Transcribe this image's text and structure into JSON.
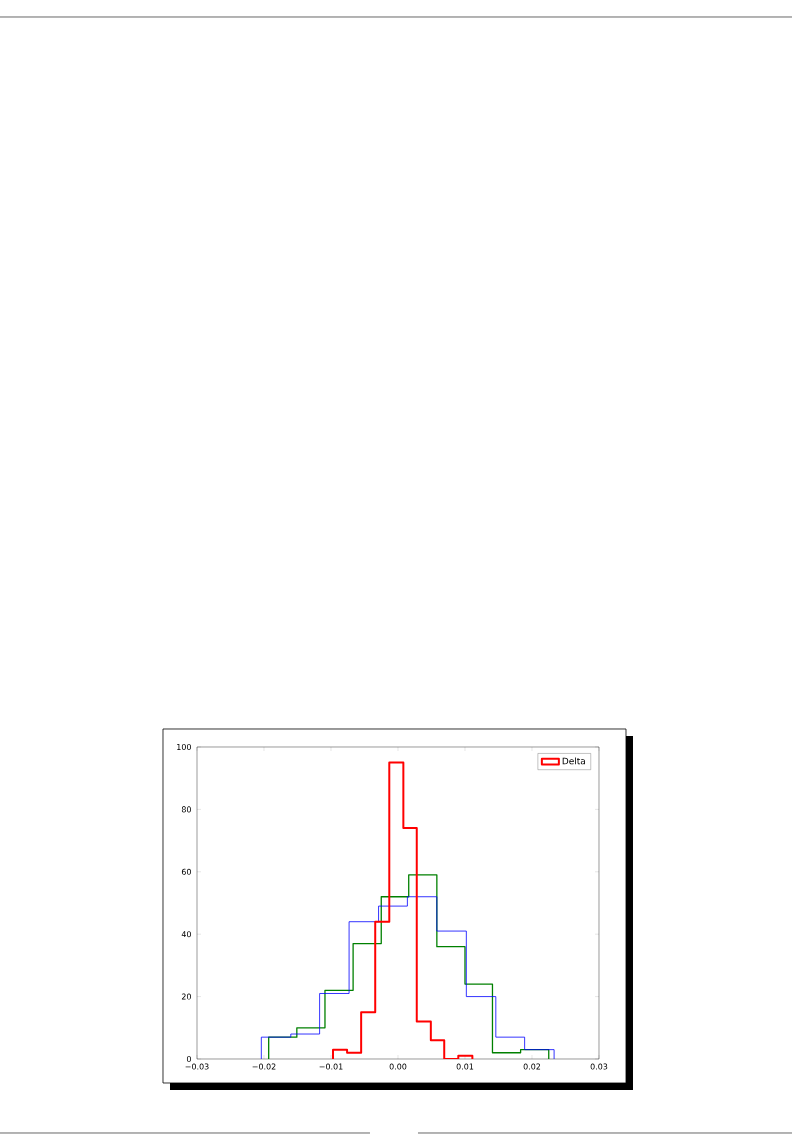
{
  "chart_data": {
    "type": "step",
    "legend": "top right",
    "grid": false,
    "xlim": [
      -0.03,
      0.03
    ],
    "ylim": [
      0,
      100
    ],
    "xticks": [
      {
        "value": -0.03,
        "label": "−0.03"
      },
      {
        "value": -0.02,
        "label": "−0.02"
      },
      {
        "value": -0.01,
        "label": "−0.01"
      },
      {
        "value": 0,
        "label": "0.00"
      },
      {
        "value": 0.01,
        "label": "0.01"
      },
      {
        "value": 0.02,
        "label": "0.02"
      },
      {
        "value": 0.03,
        "label": "0.03"
      }
    ],
    "yticks": [
      {
        "value": 0,
        "label": "0"
      },
      {
        "value": 20,
        "label": "20"
      },
      {
        "value": 40,
        "label": "40"
      },
      {
        "value": 60,
        "label": "60"
      },
      {
        "value": 80,
        "label": "80"
      },
      {
        "value": 100,
        "label": "100"
      }
    ],
    "series": [
      {
        "color": "#0000ff",
        "x": [
          -0.0204,
          -0.0204,
          -0.016,
          -0.0117,
          -0.0073,
          -0.0029,
          0.0014,
          0.0058,
          0.0102,
          0.0146,
          0.0189,
          0.0233
        ],
        "values": [
          0,
          7,
          8,
          21,
          44,
          49,
          52,
          41,
          20,
          7,
          3,
          0
        ]
      },
      {
        "color": "#008000",
        "x": [
          -0.0193,
          -0.0193,
          -0.0151,
          -0.0109,
          -0.0067,
          -0.0025,
          0.0016,
          0.0058,
          0.01,
          0.0141,
          0.0183,
          0.0225
        ],
        "values": [
          0,
          7,
          10,
          22,
          37,
          52,
          59,
          36,
          24,
          2,
          3,
          0
        ]
      },
      {
        "name": "Delta",
        "color": "#ff0000",
        "x": [
          -0.0097,
          -0.0097,
          -0.0076,
          -0.0055,
          -0.0034,
          -0.0013,
          0.0008,
          0.0028,
          0.0049,
          0.0069,
          0.009,
          0.0111
        ],
        "values": [
          0,
          3,
          2,
          15,
          44,
          95,
          74,
          12,
          6,
          0,
          1,
          0
        ]
      }
    ]
  }
}
